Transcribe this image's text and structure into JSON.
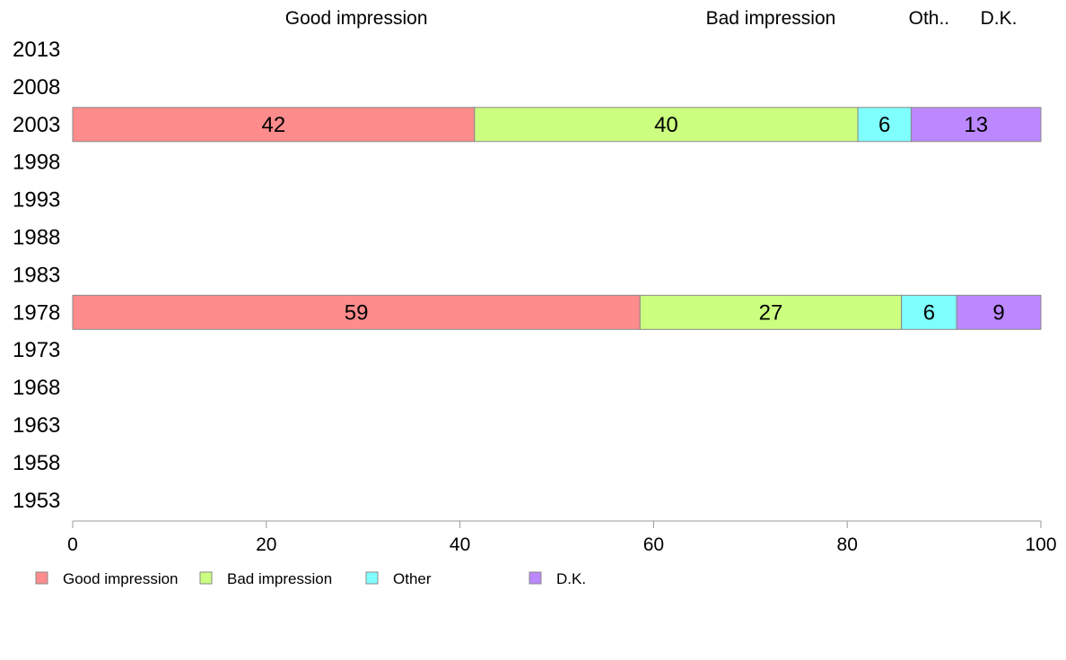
{
  "chart_data": {
    "type": "bar",
    "orientation": "horizontal",
    "stacked": true,
    "categories": [
      "2013",
      "2008",
      "2003",
      "1998",
      "1993",
      "1988",
      "1983",
      "1978",
      "1973",
      "1968",
      "1963",
      "1958",
      "1953"
    ],
    "series": [
      {
        "name": "Good impression",
        "color": "#ff8c8c",
        "values": [
          null,
          null,
          42,
          null,
          null,
          null,
          null,
          59,
          null,
          null,
          null,
          null,
          null
        ]
      },
      {
        "name": "Bad impression",
        "color": "#ccff80",
        "values": [
          null,
          null,
          40,
          null,
          null,
          null,
          null,
          27,
          null,
          null,
          null,
          null,
          null
        ]
      },
      {
        "name": "Other",
        "color": "#80ffff",
        "values": [
          null,
          null,
          6,
          null,
          null,
          null,
          null,
          6,
          null,
          null,
          null,
          null,
          null
        ]
      },
      {
        "name": "D.K.",
        "color": "#bb88ff",
        "values": [
          null,
          null,
          13,
          null,
          null,
          null,
          null,
          9,
          null,
          null,
          null,
          null,
          null
        ]
      }
    ],
    "stack_extents": {
      "2003": [
        41.5,
        39.6,
        5.5,
        13.4
      ],
      "1978": [
        58.6,
        27.0,
        5.7,
        8.7
      ]
    },
    "top_labels": [
      "Good impression",
      "Bad impression",
      "Oth..",
      "D.K."
    ],
    "top_label_basis": "1978",
    "x_ticks": [
      "0",
      "20",
      "40",
      "60",
      "80",
      "100"
    ],
    "xlim": [
      0,
      100
    ],
    "grid": false,
    "legend_position": "bottom-left",
    "title": "",
    "xlabel": "",
    "ylabel": ""
  }
}
